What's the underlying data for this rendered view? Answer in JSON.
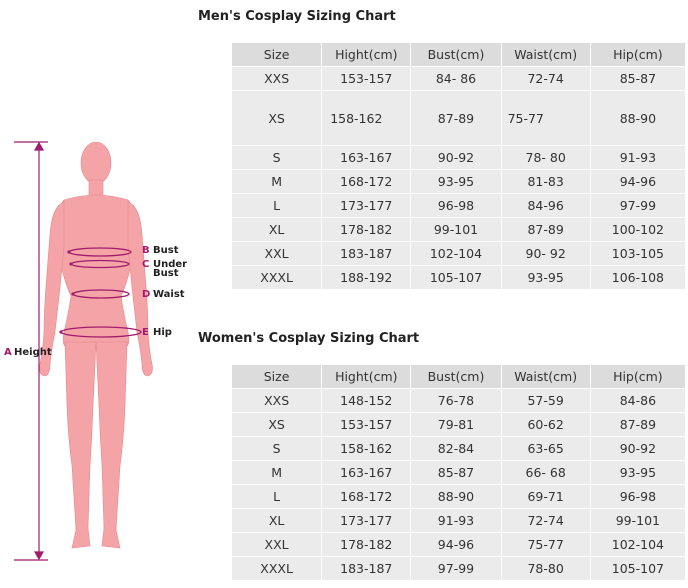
{
  "men": {
    "title": "Men's Cosplay Sizing Chart",
    "headers": [
      "Size",
      "Hight(cm)",
      "Bust(cm)",
      "Waist(cm)",
      "Hip(cm)"
    ],
    "rows": [
      [
        "XXS",
        "153-157",
        "84- 86",
        "72-74",
        "85-87"
      ],
      [
        "XS",
        "158-162",
        "87-89",
        "75-77",
        "88-90"
      ],
      [
        "S",
        "163-167",
        "90-92",
        "78- 80",
        "91-93"
      ],
      [
        "M",
        "168-172",
        "93-95",
        "81-83",
        "94-96"
      ],
      [
        "L",
        "173-177",
        "96-98",
        "84-96",
        "97-99"
      ],
      [
        "XL",
        "178-182",
        "99-101",
        "87-89",
        "100-102"
      ],
      [
        "XXL",
        "183-187",
        "102-104",
        "90- 92",
        "103-105"
      ],
      [
        "XXXL",
        "188-192",
        "105-107",
        "93-95",
        "106-108"
      ]
    ]
  },
  "women": {
    "title": "Women's Cosplay Sizing Chart",
    "headers": [
      "Size",
      "Hight(cm)",
      "Bust(cm)",
      "Waist(cm)",
      "Hip(cm)"
    ],
    "rows": [
      [
        "XXS",
        "148-152",
        "76-78",
        "57-59",
        "84-86"
      ],
      [
        "XS",
        "153-157",
        "79-81",
        "60-62",
        "87-89"
      ],
      [
        "S",
        "158-162",
        "82-84",
        "63-65",
        "90-92"
      ],
      [
        "M",
        "163-167",
        "85-87",
        "66- 68",
        "93-95"
      ],
      [
        "L",
        "168-172",
        "88-90",
        "69-71",
        "96-98"
      ],
      [
        "XL",
        "173-177",
        "91-93",
        "72-74",
        "99-101"
      ],
      [
        "XXL",
        "178-182",
        "94-96",
        "75-77",
        "102-104"
      ],
      [
        "XXXL",
        "183-187",
        "97-99",
        "78-80",
        "105-107"
      ]
    ]
  },
  "figure": {
    "labels": {
      "height_letter": "A",
      "height": "Height",
      "bust_letter": "B",
      "bust": "Bust",
      "underbust_letter": "C",
      "underbust_1": "Under",
      "underbust_2": "Bust",
      "waist_letter": "D",
      "waist": "Waist",
      "hip_letter": "E",
      "hip": "Hip"
    }
  },
  "colors": {
    "header_bg": "#dcdcdc",
    "cell_bg": "#ebebeb",
    "body_fill": "#f4a3a6",
    "measure_line": "#a11b6f"
  }
}
